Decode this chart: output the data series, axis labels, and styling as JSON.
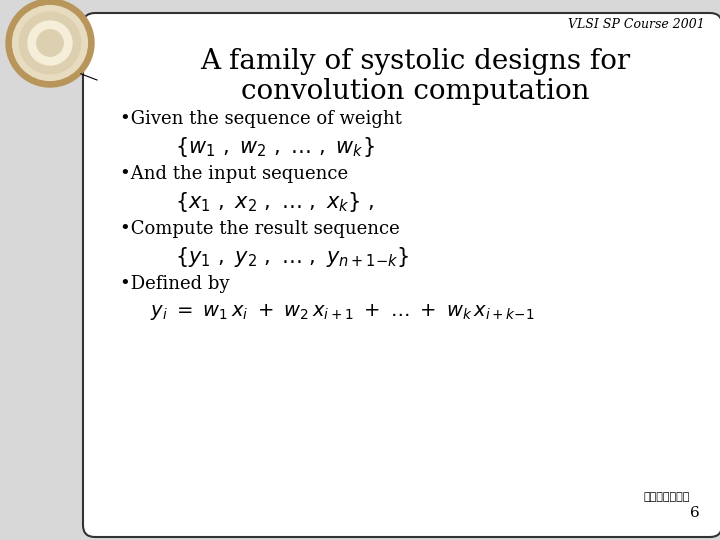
{
  "bg_color": "#d8d8d8",
  "slide_bg": "#ffffff",
  "header_text": "VLSI SP Course 2001",
  "title_line1": "A family of systolic designs for",
  "title_line2": "convolution computation",
  "bullet1": "•Given the sequence of weight",
  "bullet2": "•And the input sequence",
  "bullet3": "•Compute the result sequence",
  "bullet4": "•Defined by",
  "footer_chinese": "台大電機系安字",
  "page_num": "6",
  "text_color": "#000000",
  "border_color": "#333333",
  "logo_outer": "#b8955a",
  "logo_mid": "#e8dcc0",
  "logo_inner": "#f5eed8",
  "logo_center": "#ddd0b0"
}
